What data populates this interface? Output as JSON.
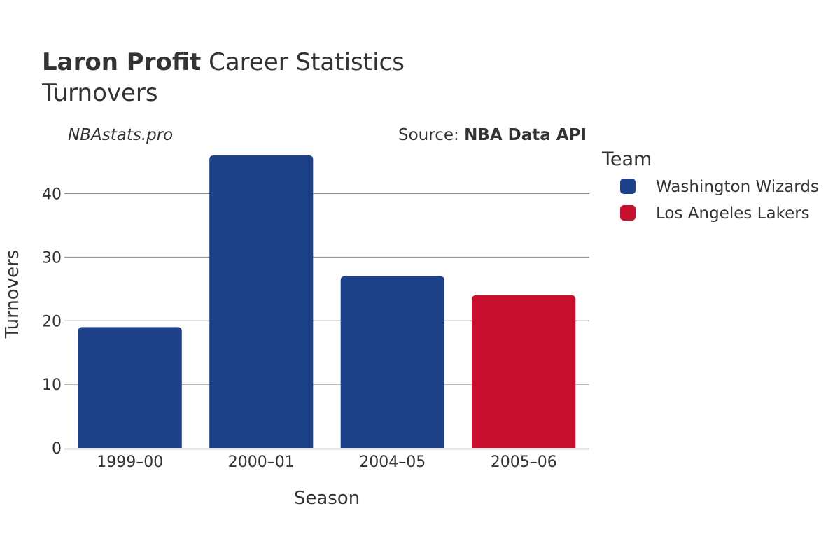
{
  "title": {
    "player": "Laron Profit",
    "rest": " Career Statistics",
    "subtitle": "Turnovers"
  },
  "watermark": "NBAstats.pro",
  "source": {
    "prefix": "Source: ",
    "name": "NBA Data API"
  },
  "legend": {
    "title": "Team",
    "placement": "right"
  },
  "chart_data": {
    "type": "bar",
    "title": "Laron Profit Career Statistics",
    "subtitle": "Turnovers",
    "xlabel": "Season",
    "ylabel": "Turnovers",
    "categories": [
      "1999–00",
      "2000–01",
      "2004–05",
      "2005–06"
    ],
    "values": [
      19,
      46,
      27,
      24
    ],
    "teams": [
      "Washington Wizards",
      "Washington Wizards",
      "Washington Wizards",
      "Los Angeles Lakers"
    ],
    "series": [
      {
        "name": "Washington Wizards",
        "color": "#1d428a"
      },
      {
        "name": "Los Angeles Lakers",
        "color": "#c8102e"
      }
    ],
    "ylim": [
      0,
      46
    ],
    "yticks": [
      0,
      10,
      20,
      30,
      40
    ],
    "grid": true
  }
}
